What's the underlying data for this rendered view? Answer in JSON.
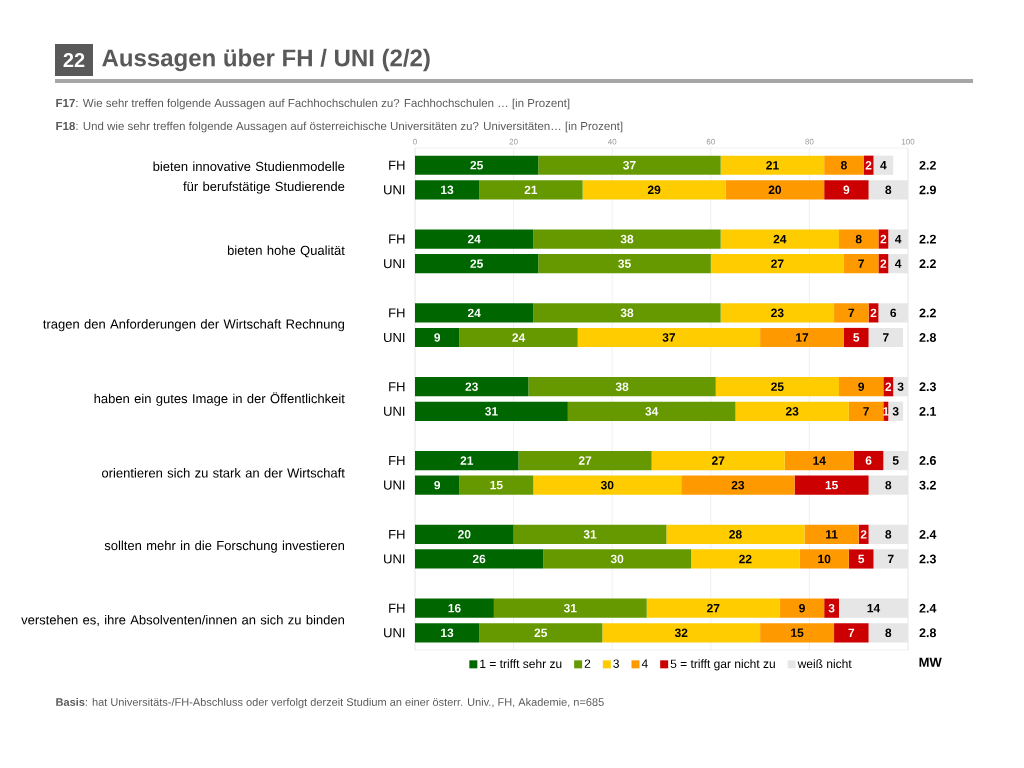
{
  "chart_data": {
    "type": "bar",
    "orientation": "horizontal",
    "stacked": true,
    "title": "Aussagen über FH / UNI (2/2)",
    "subtitle": "**F17**: Wie sehr treffen folgende Aussagen auf Fachhochschulen zu? Fachhochschulen … [in Prozent]",
    "categories": [
      "FH",
      "UNI",
      "FH",
      "UNI",
      "FH",
      "UNI",
      "FH",
      "UNI",
      "FH",
      "UNI",
      "FH",
      "UNI",
      "FH",
      "UNI"
    ],
    "series": [
      {
        "name": "1 = trifft sehr zu",
        "color": "#006600",
        "values": [
          25,
          13,
          24,
          25,
          24,
          9,
          23,
          31,
          21,
          9,
          20,
          26,
          16,
          13
        ]
      },
      {
        "name": "2",
        "color": "#669900",
        "values": [
          37,
          21,
          38,
          35,
          38,
          24,
          38,
          34,
          27,
          15,
          31,
          30,
          31,
          25
        ]
      },
      {
        "name": "3",
        "color": "#ffcc00",
        "values": [
          21,
          29,
          24,
          27,
          23,
          37,
          25,
          23,
          27,
          30,
          28,
          22,
          27,
          32
        ]
      },
      {
        "name": "4",
        "color": "#ff9900",
        "values": [
          8,
          20,
          8,
          7,
          7,
          17,
          9,
          7,
          14,
          23,
          11,
          10,
          9,
          15
        ]
      },
      {
        "name": "5 = trifft gar nicht zu",
        "color": "#cc0000",
        "values": [
          2,
          9,
          2,
          2,
          2,
          5,
          2,
          1,
          6,
          15,
          2,
          5,
          3,
          7
        ]
      },
      {
        "name": "weiß nicht",
        "color": "#e6e6e6",
        "values": [
          4,
          8,
          4,
          4,
          6,
          7,
          3,
          3,
          5,
          8,
          8,
          7,
          14,
          8
        ]
      }
    ],
    "xlim": [
      0,
      100
    ],
    "xticks": [
      0,
      20,
      40,
      60,
      80,
      100
    ],
    "grid": "x",
    "legend": "bottom",
    "data_labels": true,
    "annotations": [
      "22",
      "**F18**: Und wie sehr treffen folgende Aussagen auf österreichische Universitäten zu? Universitäten… [in Prozent]",
      "bieten innovative Studienmodelle für berufstätige Studierende",
      "bieten hohe Qualität",
      "tragen den Anforderungen der Wirtschaft Rechnung",
      "haben ein gutes Image in der Öffentlichkeit",
      "orientieren sich zu stark an der Wirtschaft",
      "sollten mehr in die Forschung investieren",
      "verstehen es, ihre Absolventen/innen an sich zu binden",
      "MW",
      "2.2",
      "2.9",
      "2.2",
      "2.2",
      "2.2",
      "2.8",
      "2.3",
      "2.1",
      "2.6",
      "3.2",
      "2.4",
      "2.3",
      "2.4",
      "2.8",
      "**Basis**: hat Universitäts-/FH-Abschluss oder verfolgt derzeit Studium an einer österr. Univ., FH, Akademie, n=685"
    ]
  }
}
